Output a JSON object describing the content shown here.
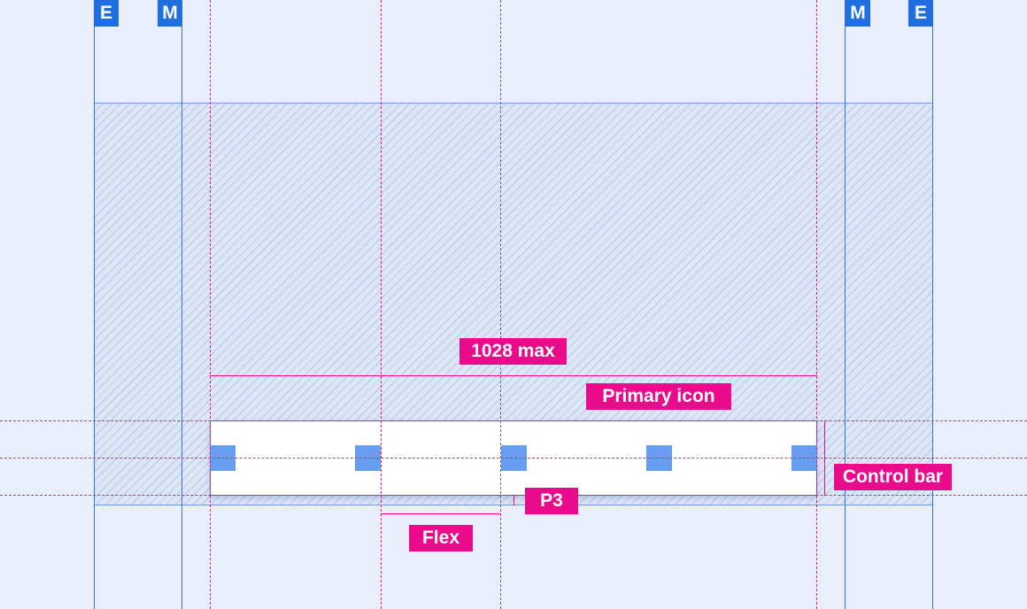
{
  "margins": {
    "edge_label": "E",
    "margin_label": "M"
  },
  "annotations": {
    "max_width": "1028 max",
    "primary_icon": "Primary icon",
    "control_bar": "Control bar",
    "padding": "P3",
    "flex": "Flex"
  },
  "colors": {
    "accent": "#ea0a8c",
    "grid": "#2f74e0",
    "icon": "#679ef2",
    "background": "#e8effb"
  },
  "control_bar": {
    "icon_count": 5
  }
}
